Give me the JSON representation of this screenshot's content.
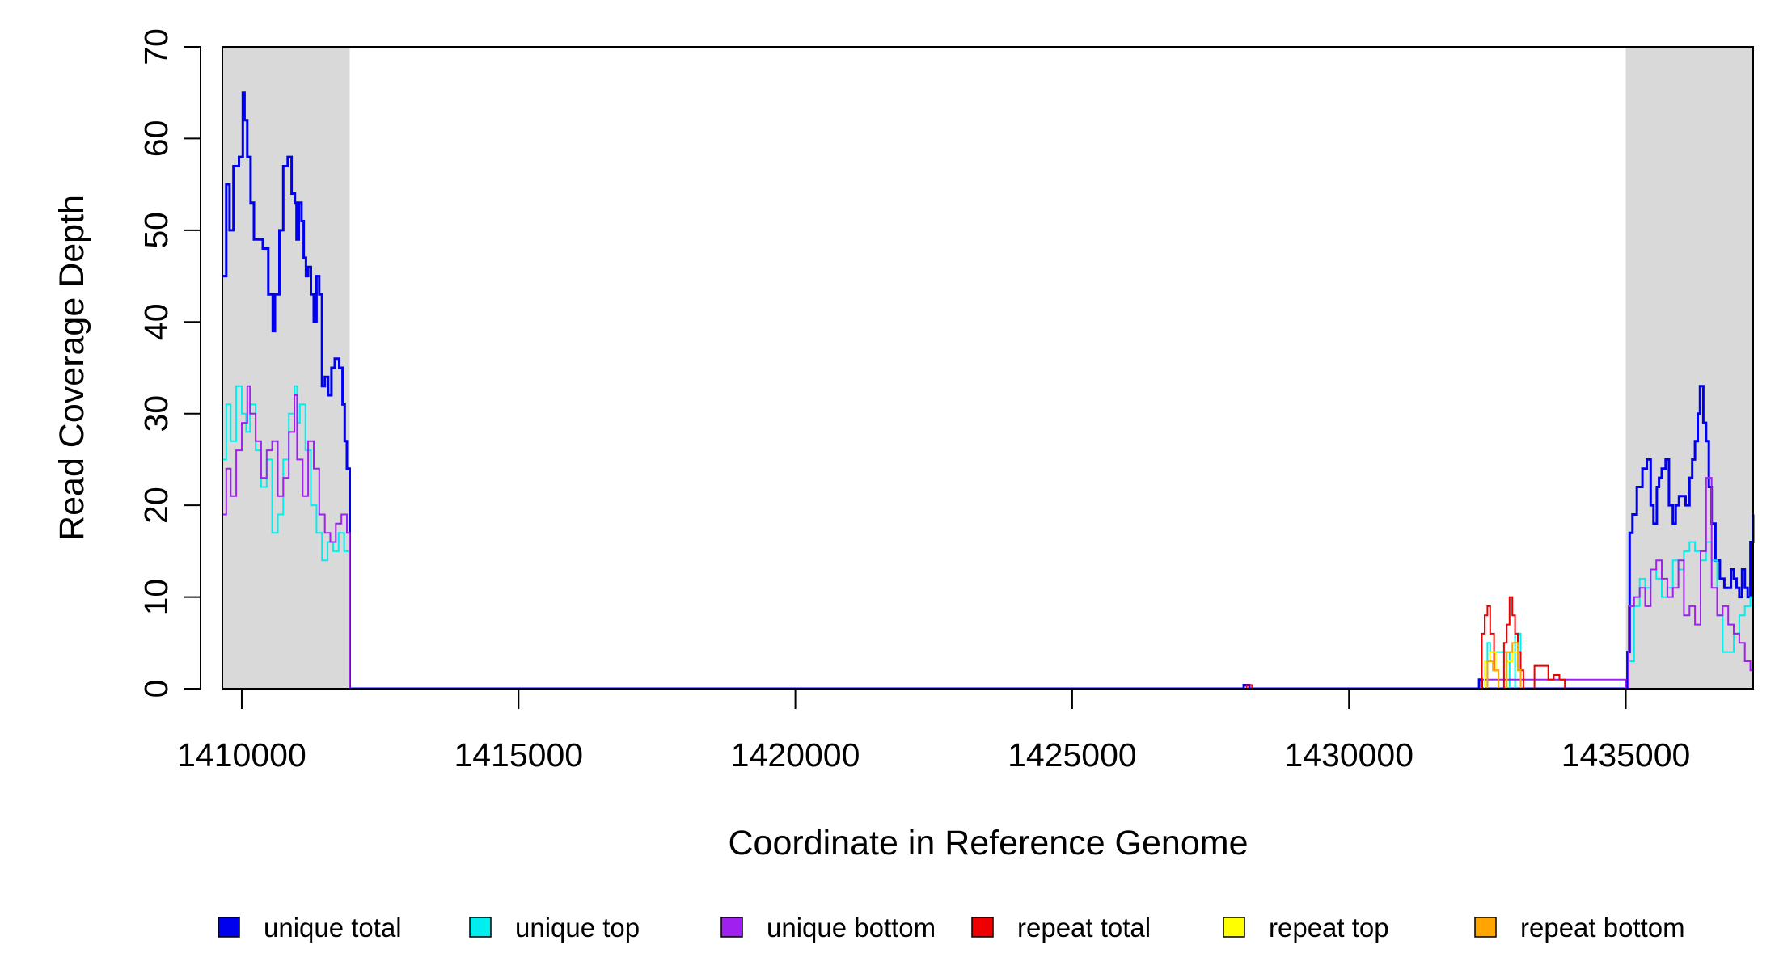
{
  "chart_data": {
    "type": "line",
    "xlabel": "Coordinate in Reference Genome",
    "ylabel": "Read Coverage Depth",
    "xlim": [
      1409650,
      1437300
    ],
    "ylim": [
      0,
      70
    ],
    "x_ticks": [
      1410000,
      1415000,
      1420000,
      1425000,
      1430000,
      1435000
    ],
    "x_tick_labels": [
      "1410000",
      "1415000",
      "1420000",
      "1425000",
      "1430000",
      "1435000"
    ],
    "y_ticks": [
      0,
      10,
      20,
      30,
      40,
      50,
      60,
      70
    ],
    "y_tick_labels": [
      "0",
      "10",
      "20",
      "30",
      "40",
      "50",
      "60",
      "70"
    ],
    "grid": false,
    "legend_position": "bottom",
    "shaded_regions": [
      {
        "x0": 1409650,
        "x1": 1411950,
        "color": "#d9d9d9"
      },
      {
        "x0": 1435000,
        "x1": 1437300,
        "color": "#d9d9d9"
      }
    ],
    "series": [
      {
        "name": "unique total",
        "color": "#0000ee",
        "x": [
          1409650,
          1409720,
          1409780,
          1409850,
          1409950,
          1410020,
          1410050,
          1410100,
          1410160,
          1410220,
          1410300,
          1410380,
          1410480,
          1410560,
          1410600,
          1410680,
          1410750,
          1410830,
          1410900,
          1410960,
          1410990,
          1411030,
          1411080,
          1411120,
          1411160,
          1411200,
          1411250,
          1411300,
          1411350,
          1411400,
          1411450,
          1411500,
          1411560,
          1411620,
          1411680,
          1411760,
          1411820,
          1411860,
          1411900,
          1411950,
          1411951,
          1428000,
          1428100,
          1428200,
          1428350,
          1432100,
          1432350,
          1432400,
          1435000,
          1435030,
          1435070,
          1435120,
          1435200,
          1435300,
          1435380,
          1435450,
          1435500,
          1435560,
          1435600,
          1435650,
          1435720,
          1435780,
          1435850,
          1435900,
          1435960,
          1436000,
          1436080,
          1436150,
          1436200,
          1436250,
          1436300,
          1436340,
          1436400,
          1436450,
          1436500,
          1436550,
          1436620,
          1436700,
          1436780,
          1436850,
          1436900,
          1436950,
          1437000,
          1437050,
          1437100,
          1437150,
          1437200,
          1437250,
          1437300
        ],
        "y": [
          45,
          55,
          50,
          57,
          58,
          65,
          62,
          58,
          53,
          49,
          49,
          48,
          43,
          39,
          43,
          50,
          57,
          58,
          54,
          53,
          49,
          53,
          51,
          47,
          45,
          46,
          43,
          40,
          45,
          43,
          33,
          34,
          32,
          35,
          36,
          35,
          31,
          27,
          24,
          0,
          0,
          0,
          0.4,
          0,
          0,
          0,
          1,
          0,
          0,
          4,
          17,
          19,
          22,
          24,
          25,
          20,
          18,
          22,
          23,
          24,
          25,
          20,
          18,
          20,
          21,
          21,
          20,
          23,
          25,
          27,
          30,
          33,
          29,
          27,
          22,
          18,
          14,
          12,
          11,
          11,
          13,
          12,
          11,
          10,
          13,
          11,
          10,
          16,
          19
        ]
      },
      {
        "name": "unique top",
        "color": "#00eeee",
        "x": [
          1409650,
          1409720,
          1409800,
          1409900,
          1410000,
          1410080,
          1410150,
          1410250,
          1410350,
          1410450,
          1410550,
          1410650,
          1410750,
          1410850,
          1410950,
          1411000,
          1411050,
          1411150,
          1411250,
          1411350,
          1411450,
          1411550,
          1411650,
          1411750,
          1411850,
          1411920,
          1411950,
          1411951,
          1432400,
          1432500,
          1432550,
          1432900,
          1433000,
          1433100,
          1435000,
          1435050,
          1435150,
          1435250,
          1435350,
          1435450,
          1435550,
          1435650,
          1435750,
          1435850,
          1435950,
          1436050,
          1436150,
          1436250,
          1436350,
          1436450,
          1436550,
          1436650,
          1436750,
          1436850,
          1436950,
          1437050,
          1437150,
          1437250,
          1437300
        ],
        "y": [
          25,
          31,
          27,
          33,
          30,
          28,
          31,
          26,
          22,
          25,
          17,
          19,
          25,
          30,
          33,
          29,
          31,
          26,
          20,
          17,
          14,
          16,
          15,
          17,
          15,
          15,
          9,
          0,
          0,
          5,
          4,
          0,
          6,
          0,
          0,
          3,
          9,
          12,
          11,
          13,
          12,
          10,
          11,
          14,
          13,
          15,
          16,
          15,
          14,
          16,
          14,
          8,
          4,
          4,
          6,
          8,
          9,
          10,
          13
        ]
      },
      {
        "name": "unique bottom",
        "color": "#a020f0",
        "x": [
          1409650,
          1409720,
          1409800,
          1409900,
          1410000,
          1410100,
          1410150,
          1410250,
          1410350,
          1410450,
          1410550,
          1410650,
          1410750,
          1410850,
          1410950,
          1411000,
          1411100,
          1411200,
          1411300,
          1411400,
          1411500,
          1411600,
          1411700,
          1411800,
          1411900,
          1411950,
          1411951,
          1432100,
          1432400,
          1435000,
          1435050,
          1435150,
          1435250,
          1435350,
          1435450,
          1435550,
          1435650,
          1435750,
          1435850,
          1435950,
          1436050,
          1436150,
          1436250,
          1436350,
          1436450,
          1436550,
          1436650,
          1436750,
          1436850,
          1436950,
          1437050,
          1437150,
          1437250,
          1437300
        ],
        "y": [
          19,
          24,
          21,
          26,
          29,
          33,
          30,
          27,
          23,
          26,
          27,
          21,
          23,
          28,
          32,
          25,
          21,
          27,
          24,
          19,
          17,
          16,
          18,
          19,
          17,
          0,
          0,
          0,
          1,
          0,
          9,
          10,
          11,
          9,
          13,
          14,
          12,
          10,
          11,
          14,
          8,
          9,
          7,
          15,
          23,
          11,
          8,
          9,
          7,
          6,
          5,
          3,
          2,
          3
        ]
      },
      {
        "name": "repeat total",
        "color": "#ee0000",
        "x": [
          1409650,
          1428050,
          1428150,
          1428250,
          1432350,
          1432400,
          1432450,
          1432500,
          1432550,
          1432620,
          1432700,
          1432800,
          1432850,
          1432900,
          1432950,
          1433000,
          1433050,
          1433100,
          1433150,
          1433300,
          1433350,
          1433500,
          1433600,
          1433700,
          1433800,
          1433900,
          1437300
        ],
        "y": [
          0,
          0,
          0.4,
          0,
          0,
          6,
          8,
          9,
          6,
          2,
          0,
          5,
          7,
          10,
          8,
          6,
          4,
          2,
          0,
          0,
          2.5,
          2.5,
          1,
          1.5,
          1,
          0,
          0
        ]
      },
      {
        "name": "repeat top",
        "color": "#ffff00",
        "x": [
          1409650,
          1432400,
          1432450,
          1432550,
          1432650,
          1432700,
          1432850,
          1432950,
          1433050,
          1433100,
          1437300
        ],
        "y": [
          0,
          0,
          3,
          4,
          2,
          0,
          3,
          4,
          2,
          0,
          0
        ]
      },
      {
        "name": "repeat bottom",
        "color": "#ffa500",
        "x": [
          1409650,
          1432400,
          1432500,
          1432600,
          1432700,
          1432850,
          1432950,
          1433050,
          1433100,
          1437300
        ],
        "y": [
          0,
          0,
          3,
          2,
          0,
          4,
          5,
          2,
          0,
          0
        ]
      }
    ]
  }
}
